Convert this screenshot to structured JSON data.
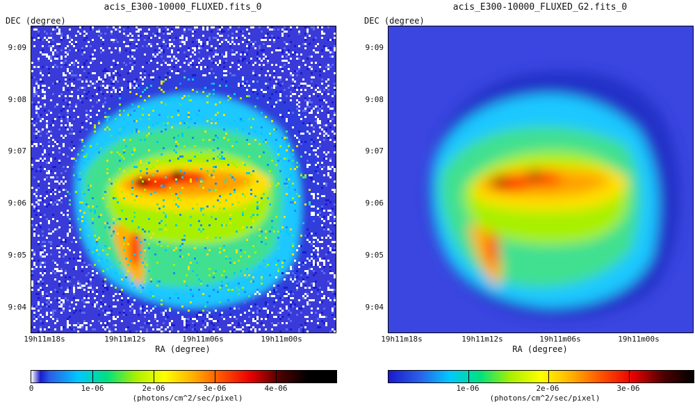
{
  "panels": [
    {
      "title": "acis_E300-10000_FLUXED.fits_0",
      "dec_label": "DEC (degree)",
      "ra_label": "RA (degree)",
      "y_ticks": [
        "9:09",
        "9:08",
        "9:07",
        "9:06",
        "9:05",
        "9:04"
      ],
      "x_ticks": [
        "19h11m18s",
        "19h11m12s",
        "19h11m06s",
        "19h11m00s"
      ],
      "colorbar_ticks": [
        "0",
        "1e-06",
        "2e-06",
        "3e-06",
        "4e-06"
      ],
      "colorbar_unit": "(photons/cm^2/sec/pixel)",
      "style": "noisy"
    },
    {
      "title": "acis_E300-10000_FLUXED_G2.fits_0",
      "dec_label": "DEC (degree)",
      "ra_label": "RA (degree)",
      "y_ticks": [
        "9:09",
        "9:08",
        "9:07",
        "9:06",
        "9:05",
        "9:04"
      ],
      "x_ticks": [
        "19h11m18s",
        "19h11m12s",
        "19h11m06s",
        "19h11m00s"
      ],
      "colorbar_ticks": [
        "1e-06",
        "2e-06",
        "3e-06"
      ],
      "colorbar_unit": "(photons/cm^2/sec/pixel)",
      "style": "smooth"
    }
  ],
  "colormap": [
    "#ffffff",
    "#1a1acc",
    "#2a5ee8",
    "#00c8ff",
    "#00e080",
    "#a8f000",
    "#ffff00",
    "#ffb000",
    "#ff5000",
    "#e80000",
    "#500000",
    "#000000"
  ]
}
